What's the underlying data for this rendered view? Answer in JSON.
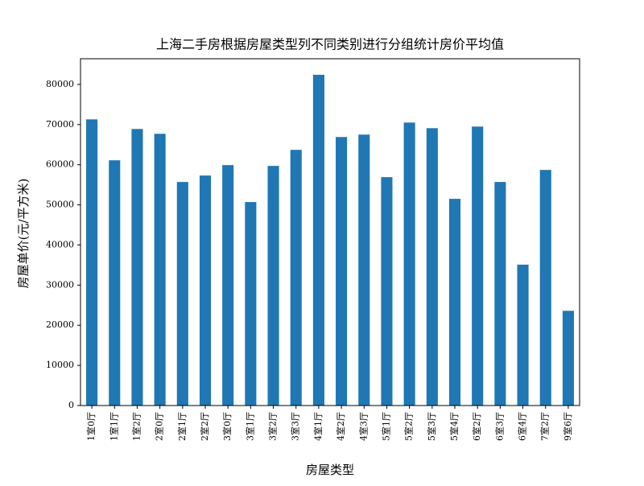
{
  "chart_data": {
    "type": "bar",
    "title": "上海二手房根据房屋类型列不同类别进行分组统计房价平均值",
    "x_label": "房屋类型",
    "y_label": "房屋单价(元/平方米)",
    "categories": [
      "1室0厅",
      "1室1厅",
      "1室2厅",
      "2室0厅",
      "2室1厅",
      "2室2厅",
      "3室0厅",
      "3室1厅",
      "3室2厅",
      "3室3厅",
      "4室1厅",
      "4室2厅",
      "4室3厅",
      "5室1厅",
      "5室2厅",
      "5室3厅",
      "5室4厅",
      "6室2厅",
      "6室3厅",
      "6室4厅",
      "7室2厅",
      "9室6厅"
    ],
    "values": [
      71300,
      61100,
      68900,
      67700,
      55700,
      57300,
      59900,
      50700,
      59700,
      63700,
      82400,
      66900,
      67500,
      56900,
      70500,
      69100,
      51500,
      69500,
      55700,
      35100,
      58700,
      23600
    ],
    "color": "#1f77b4",
    "ylim": [
      0,
      86400
    ],
    "yticks": [
      0,
      10000,
      20000,
      30000,
      40000,
      50000,
      60000,
      70000,
      80000
    ],
    "grid": false
  }
}
